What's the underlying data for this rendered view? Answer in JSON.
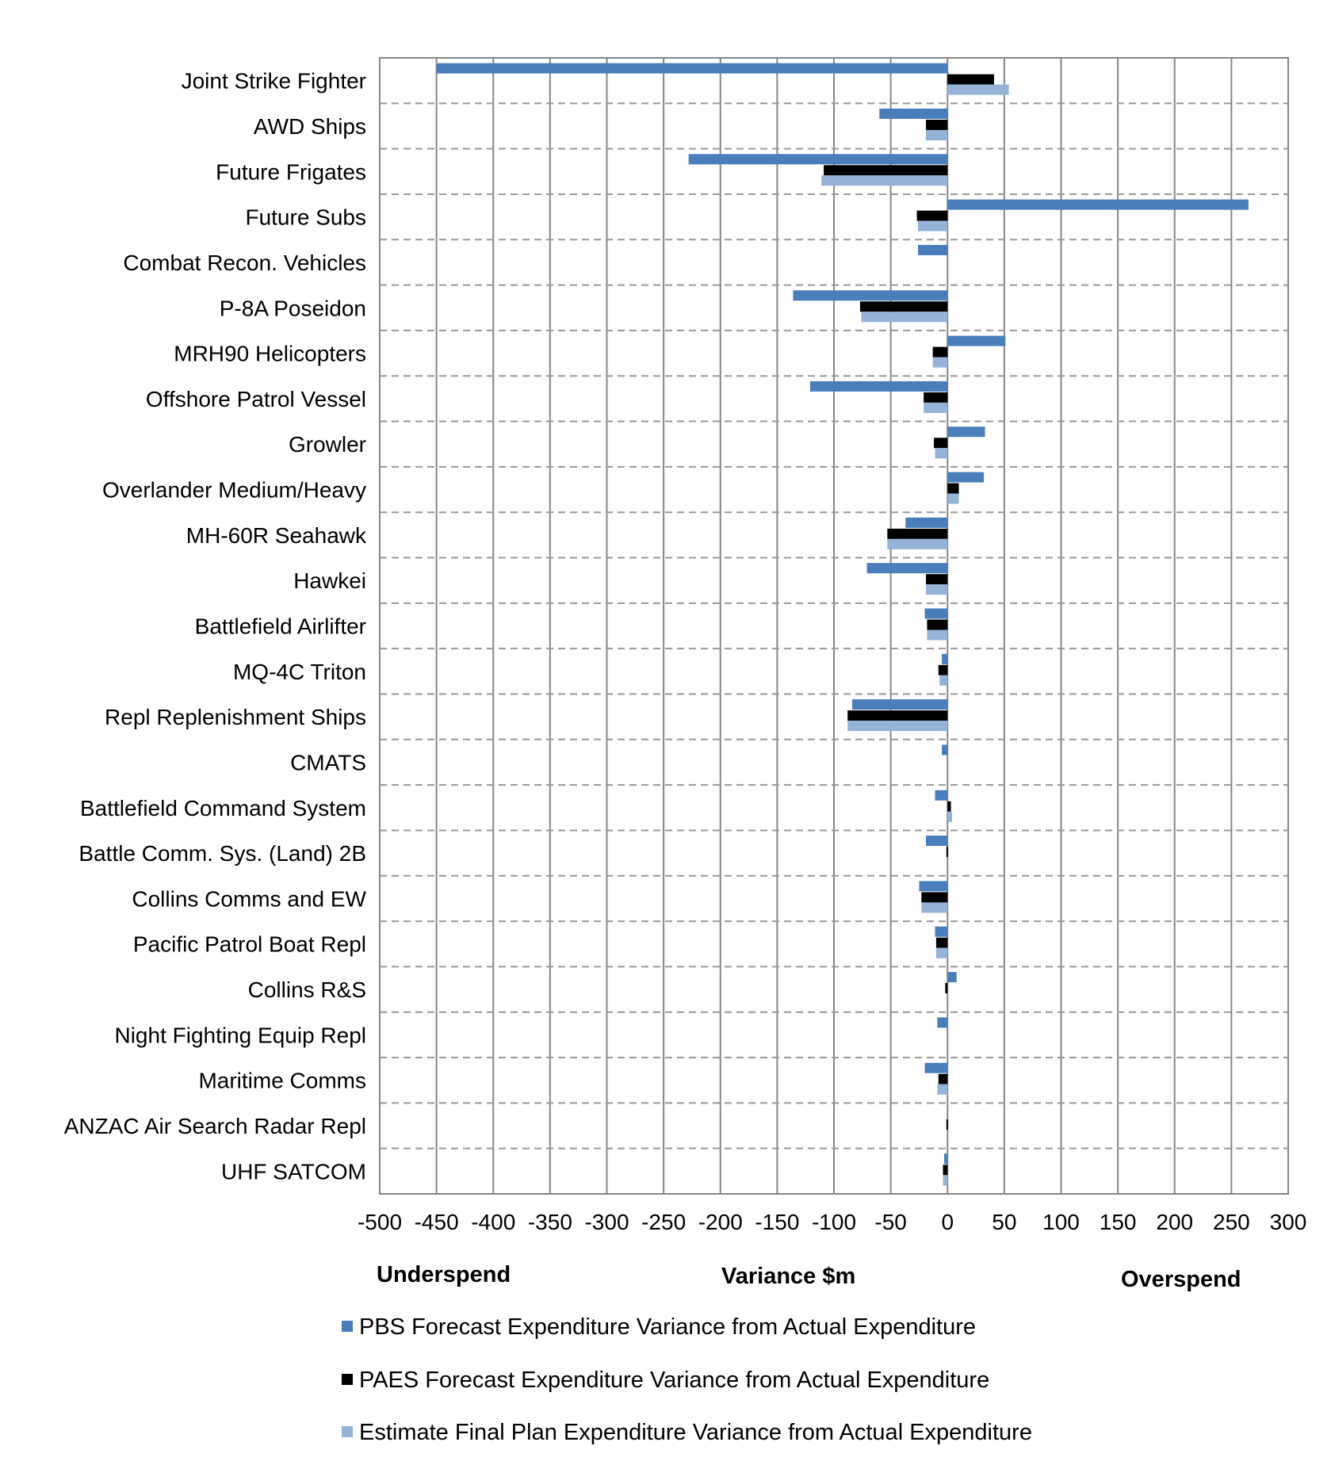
{
  "chart_data": {
    "type": "bar",
    "orientation": "horizontal",
    "categories": [
      "Joint Strike Fighter",
      "AWD Ships",
      "Future Frigates",
      "Future Subs",
      "Combat Recon. Vehicles",
      "P-8A Poseidon",
      "MRH90 Helicopters",
      "Offshore Patrol Vessel",
      "Growler",
      "Overlander Medium/Heavy",
      "MH-60R Seahawk",
      "Hawkei",
      "Battlefield Airlifter",
      "MQ-4C Triton",
      "Repl Replenishment Ships",
      "CMATS",
      "Battlefield Command System",
      "Battle Comm. Sys. (Land) 2B",
      "Collins Comms and EW",
      "Pacific Patrol Boat Repl",
      "Collins R&S",
      "Night Fighting Equip Repl",
      "Maritime Comms",
      "ANZAC Air Search Radar Repl",
      "UHF SATCOM"
    ],
    "series": [
      {
        "name": "PBS Forecast Expenditure Variance from Actual Expenditure",
        "color": "#4a7ebb",
        "values": [
          -450,
          -60,
          -228,
          265,
          -26,
          -136,
          51,
          -121,
          33,
          32,
          -37,
          -71,
          -20,
          -5,
          -84,
          -5,
          -11,
          -19,
          -25,
          -11,
          8,
          -9,
          -20,
          0,
          -3
        ]
      },
      {
        "name": "PAES Forecast Expenditure Variance from Actual Expenditure",
        "color": "#000000",
        "values": [
          41,
          -19,
          -109,
          -27,
          0,
          -77,
          -13,
          -21,
          -12,
          10,
          -53,
          -19,
          -18,
          -8,
          -88,
          0,
          3,
          -1,
          -23,
          -10,
          -2,
          0,
          -8,
          -1,
          -4
        ]
      },
      {
        "name": "Estimate Final Plan Expenditure Variance from Actual Expenditure",
        "color": "#95b3d7",
        "values": [
          54,
          -19,
          -111,
          -26,
          0,
          -76,
          -13,
          -21,
          -11,
          10,
          -53,
          -19,
          -18,
          -7,
          -88,
          0,
          4,
          0,
          -23,
          -10,
          0,
          0,
          -9,
          0,
          -4
        ]
      }
    ],
    "xlim": [
      -500,
      300
    ],
    "xticks": [
      -500,
      -450,
      -400,
      -350,
      -300,
      -250,
      -200,
      -150,
      -100,
      -50,
      0,
      50,
      100,
      150,
      200,
      250,
      300
    ],
    "xlabel": "Variance $m",
    "annotations": {
      "left": "Underspend",
      "right": "Overspend"
    },
    "grid": {
      "vertical": "solid",
      "horizontal": "dashed"
    },
    "legend_position": "bottom"
  }
}
